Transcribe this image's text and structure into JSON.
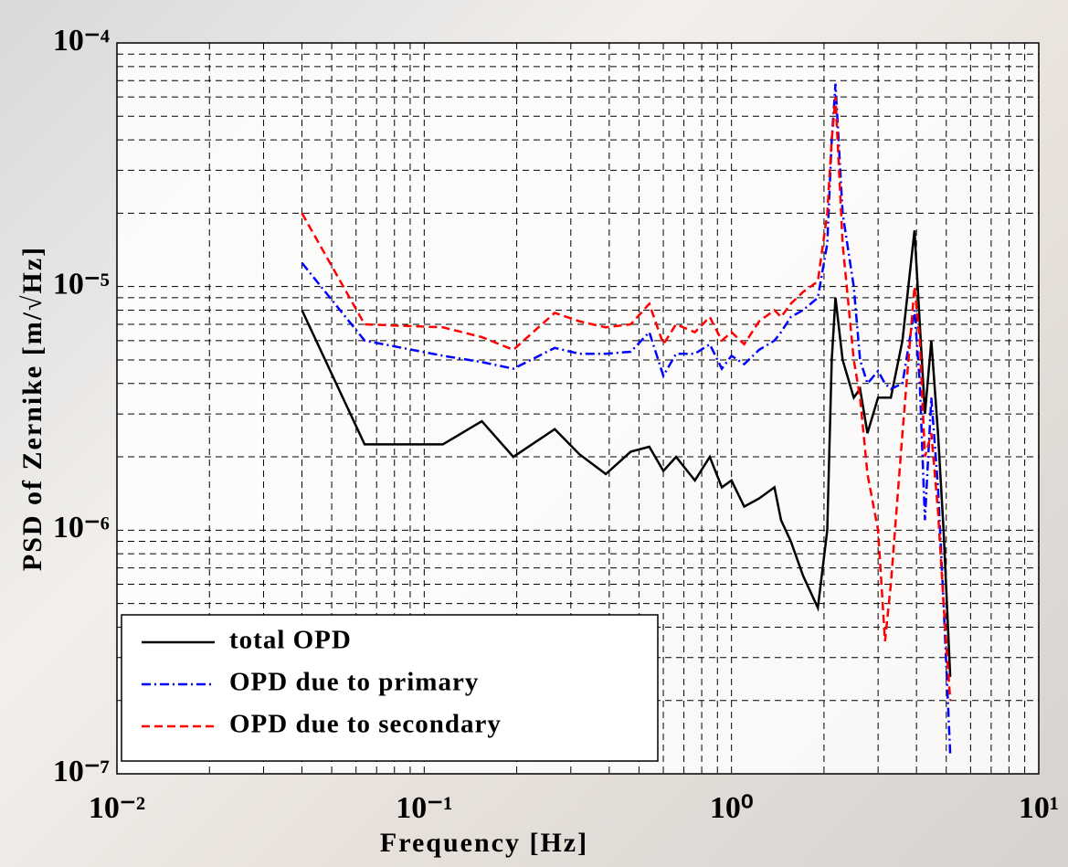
{
  "chart_data": {
    "type": "line",
    "x_label": "Frequency [Hz]",
    "y_label": "PSD of Zernike [m/√Hz]",
    "log_x": true,
    "log_y": true,
    "grid": true,
    "minor_grid": true,
    "legend_position": "lower left",
    "xlim": [
      0.01,
      10
    ],
    "ylim": [
      1e-07,
      0.0001
    ],
    "xticks": [
      {
        "value": 0.01,
        "label": "10⁻²"
      },
      {
        "value": 0.1,
        "label": "10⁻¹"
      },
      {
        "value": 1,
        "label": "10⁰"
      },
      {
        "value": 10,
        "label": "10¹"
      }
    ],
    "yticks": [
      {
        "value": 1e-07,
        "label": "10⁻⁷"
      },
      {
        "value": 1e-06,
        "label": "10⁻⁶"
      },
      {
        "value": 1e-05,
        "label": "10⁻⁵"
      },
      {
        "value": 0.0001,
        "label": "10⁻⁴"
      }
    ],
    "x": [
      0.04,
      0.064,
      0.115,
      0.154,
      0.195,
      0.266,
      0.32,
      0.39,
      0.47,
      0.54,
      0.6,
      0.66,
      0.76,
      0.85,
      0.93,
      1.0,
      1.1,
      1.23,
      1.38,
      1.45,
      1.56,
      1.71,
      1.91,
      2.05,
      2.12,
      2.18,
      2.3,
      2.5,
      2.62,
      2.77,
      3.0,
      3.16,
      3.3,
      3.6,
      3.94,
      4.1,
      4.26,
      4.47,
      4.7,
      4.9,
      5.15
    ],
    "series": [
      {
        "name": "total OPD",
        "color": "#000000",
        "dash": "solid",
        "values": [
          8e-06,
          2.25e-06,
          2.25e-06,
          2.8e-06,
          2e-06,
          2.6e-06,
          2.05e-06,
          1.7e-06,
          2.1e-06,
          2.2e-06,
          1.75e-06,
          2e-06,
          1.6e-06,
          2e-06,
          1.5e-06,
          1.6e-06,
          1.25e-06,
          1.35e-06,
          1.5e-06,
          1.1e-06,
          9e-07,
          6.5e-07,
          4.8e-07,
          1e-06,
          5e-06,
          9e-06,
          5e-06,
          3.5e-06,
          3.8e-06,
          2.5e-06,
          3.5e-06,
          3.5e-06,
          3.5e-06,
          6e-06,
          1.7e-05,
          7e-06,
          3e-06,
          6e-06,
          2.5e-06,
          1e-06,
          2.5e-07
        ]
      },
      {
        "name": "OPD due to primary",
        "color": "#0000ff",
        "dash": "dashdot",
        "values": [
          1.25e-05,
          6e-06,
          5.2e-06,
          4.9e-06,
          4.6e-06,
          5.6e-06,
          5.3e-06,
          5.3e-06,
          5.4e-06,
          6.5e-06,
          4.3e-06,
          5.3e-06,
          5.3e-06,
          5.8e-06,
          4.6e-06,
          5.2e-06,
          4.8e-06,
          5.5e-06,
          6e-06,
          6.5e-06,
          7.5e-06,
          8e-06,
          9e-06,
          1.5e-05,
          4e-05,
          6.8e-05,
          2e-05,
          1e-05,
          5e-06,
          4e-06,
          4.5e-06,
          4e-06,
          3.8e-06,
          4e-06,
          8e-06,
          4e-06,
          1.1e-06,
          3.5e-06,
          1.5e-06,
          5e-07,
          1.2e-07
        ]
      },
      {
        "name": "OPD due to secondary",
        "color": "#ff0000",
        "dash": "dashed",
        "values": [
          2e-05,
          7e-06,
          6.8e-06,
          6.2e-06,
          5.5e-06,
          7.8e-06,
          7.2e-06,
          6.8e-06,
          7e-06,
          8.5e-06,
          5.8e-06,
          7e-06,
          6.5e-06,
          7.5e-06,
          6e-06,
          6.5e-06,
          5.8e-06,
          7.2e-06,
          8e-06,
          7.5e-06,
          8.5e-06,
          9.5e-06,
          1.05e-05,
          2e-05,
          4e-05,
          6e-05,
          1.5e-05,
          5e-06,
          3.5e-06,
          1.7e-06,
          1e-06,
          3.5e-07,
          6e-07,
          2.5e-06,
          1e-05,
          6e-06,
          2e-06,
          2.5e-06,
          1.2e-06,
          5e-07,
          2e-07
        ]
      }
    ]
  }
}
